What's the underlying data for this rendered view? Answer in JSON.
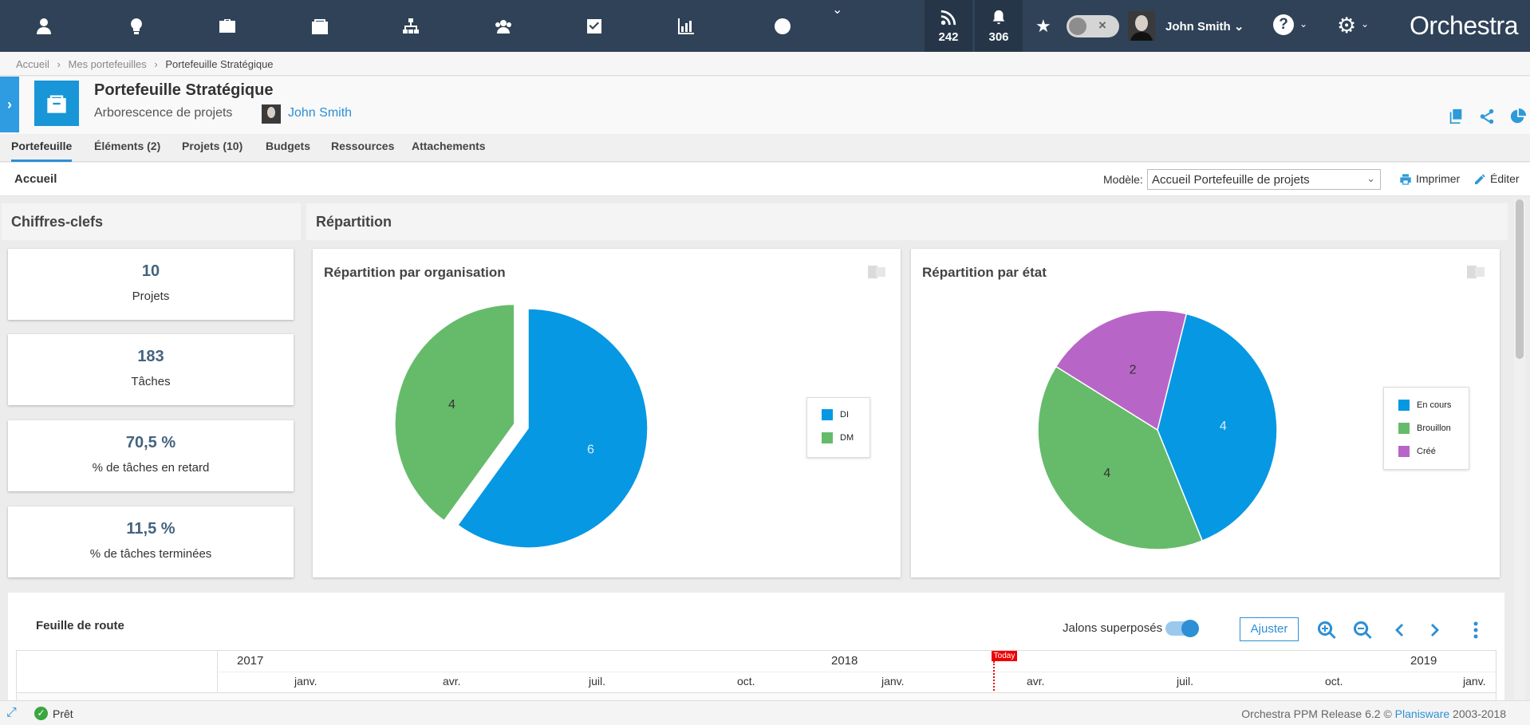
{
  "topbar": {
    "nav_icons": [
      "user-icon",
      "lightbulb-icon",
      "briefcase-icon",
      "portfolio-icon",
      "org-chart-icon",
      "team-icon",
      "checkbox-icon",
      "chart-icon",
      "clock-icon"
    ],
    "feeds_count": "242",
    "notifications_count": "306",
    "user_name": "John Smith",
    "brand": "Orchestra"
  },
  "breadcrumb": [
    "Accueil",
    "Mes portefeuilles",
    "Portefeuille Stratégique"
  ],
  "header": {
    "title": "Portefeuille Stratégique",
    "subtitle": "Arborescence de projets",
    "owner": "John Smith"
  },
  "tabs": [
    "Portefeuille",
    "Éléments (2)",
    "Projets (10)",
    "Budgets",
    "Ressources",
    "Attachements"
  ],
  "pagebar": {
    "home": "Accueil",
    "model_label": "Modèle:",
    "model_value": "Accueil Portefeuille de projets",
    "print": "Imprimer",
    "edit": "Éditer"
  },
  "sections": {
    "key_figures": "Chiffres-clefs",
    "distribution": "Répartition"
  },
  "kpis": [
    {
      "value": "10",
      "label": "Projets"
    },
    {
      "value": "183",
      "label": "Tâches"
    },
    {
      "value": "70,5 %",
      "label": "% de tâches en retard"
    },
    {
      "value": "11,5 %",
      "label": "% de tâches terminées"
    }
  ],
  "colors": {
    "blue": "#0798e3",
    "green": "#66bb6a",
    "purple": "#b865c8",
    "topbar": "#2f4258"
  },
  "chart_data": [
    {
      "type": "pie",
      "title": "Répartition par organisation",
      "categories": [
        "DI",
        "DM"
      ],
      "values": [
        6,
        4
      ],
      "colors": [
        "#0798e3",
        "#66bb6a"
      ],
      "exploded": [
        "DM"
      ]
    },
    {
      "type": "pie",
      "title": "Répartition par état",
      "categories": [
        "En cours",
        "Brouillon",
        "Créé"
      ],
      "values": [
        4,
        4,
        2
      ],
      "colors": [
        "#0798e3",
        "#66bb6a",
        "#b865c8"
      ]
    }
  ],
  "roadmap": {
    "title": "Feuille de route",
    "milestones_label": "Jalons superposés :",
    "milestones_on": true,
    "adjust": "Ajuster",
    "today": "Today",
    "years": [
      "2017",
      "2018",
      "2019"
    ],
    "months": [
      "janv.",
      "avr.",
      "juil.",
      "oct.",
      "janv.",
      "avr.",
      "juil.",
      "oct.",
      "janv."
    ]
  },
  "status": {
    "state": "Prêt",
    "release_prefix": "Orchestra PPM Release 6.2 ©",
    "vendor": "Planisware",
    "years": "2003-2018"
  }
}
